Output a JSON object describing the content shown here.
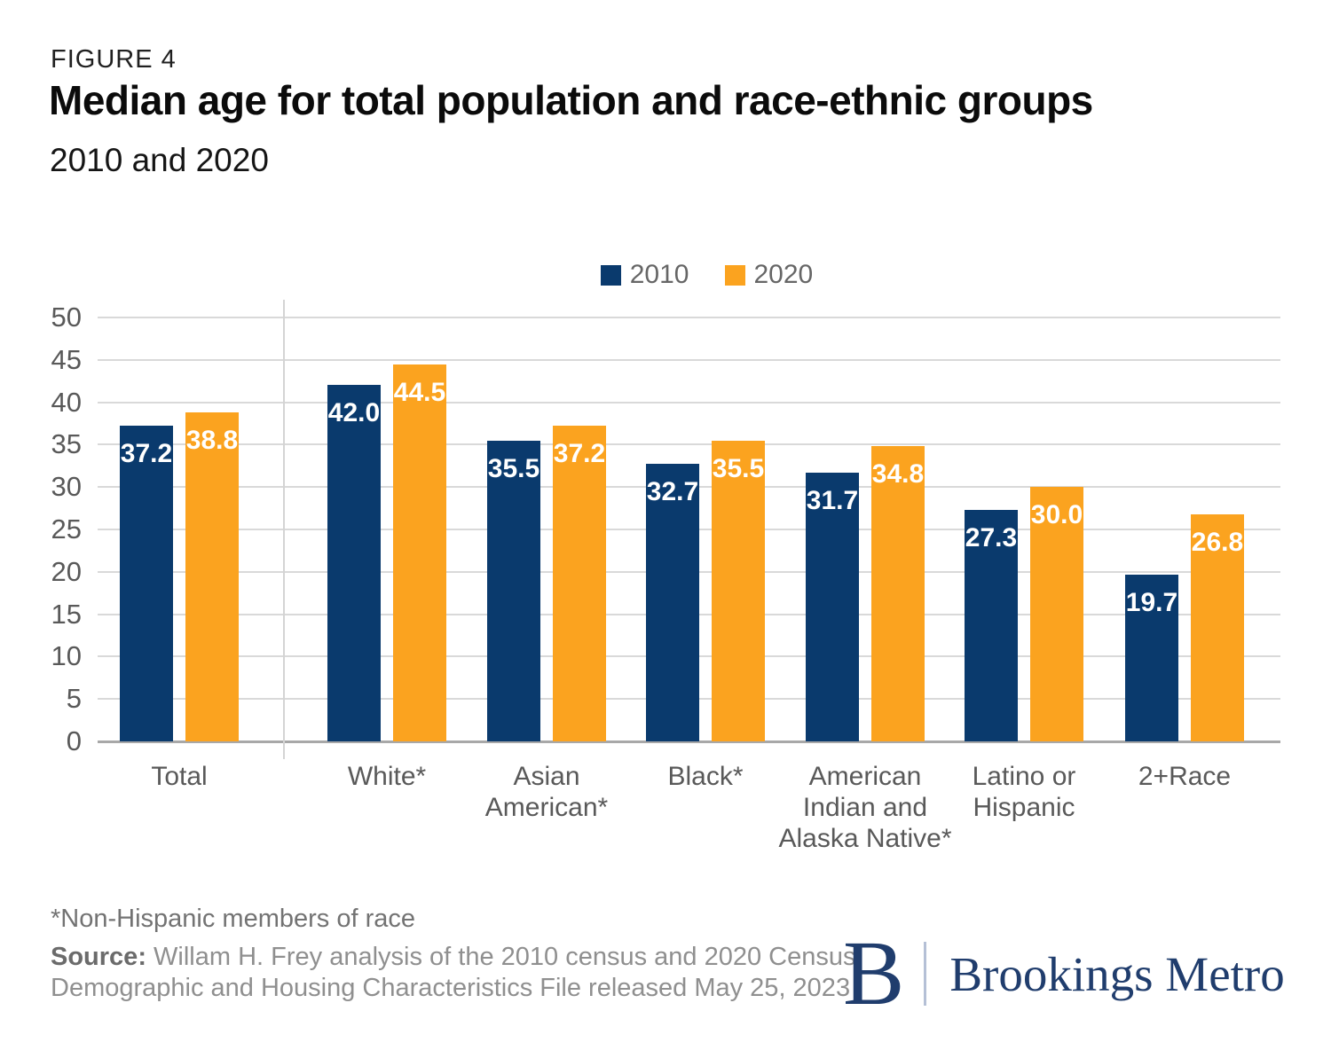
{
  "figure": {
    "label": "FIGURE 4",
    "title": "Median age for total population and race-ethnic groups",
    "subtitle": "2010 and 2020"
  },
  "colors": {
    "navy": "#0a3a6d",
    "orange": "#fba31f",
    "logo_navy": "#203d6d"
  },
  "chart_data": {
    "type": "bar",
    "categories": [
      "Total",
      "White*",
      "Asian American*",
      "Black*",
      "American Indian and Alaska Native*",
      "Latino or Hispanic",
      "2+Race"
    ],
    "category_display_lines": [
      [
        "Total"
      ],
      [
        "White*"
      ],
      [
        "Asian",
        "American*"
      ],
      [
        "Black*"
      ],
      [
        "American",
        "Indian and",
        "Alaska Native*"
      ],
      [
        "Latino or",
        "Hispanic"
      ],
      [
        "2+Race"
      ]
    ],
    "series": [
      {
        "name": "2010",
        "color": "#0a3a6d",
        "values": [
          37.2,
          42.0,
          35.5,
          32.7,
          31.7,
          27.3,
          19.7
        ]
      },
      {
        "name": "2020",
        "color": "#fba31f",
        "values": [
          38.8,
          44.5,
          37.2,
          35.5,
          34.8,
          30.0,
          26.8
        ]
      }
    ],
    "value_label_decimals": 1,
    "title": "Median age for total population and race-ethnic groups",
    "subtitle": "2010 and 2020",
    "xlabel": "",
    "ylabel": "",
    "ylim": [
      0,
      50
    ],
    "ytick_step": 5,
    "grid": true,
    "legend_position": "top",
    "separator_after_category": "Total"
  },
  "footnote": "*Non-Hispanic members of race",
  "source": {
    "label": "Source:",
    "line1_rest": " Willam H. Frey analysis of the 2010 census and 2020 Census",
    "line2": "Demographic and Housing Characteristics File released May 25, 2023"
  },
  "logo": {
    "monogram": "B",
    "name": "Brookings Metro"
  }
}
